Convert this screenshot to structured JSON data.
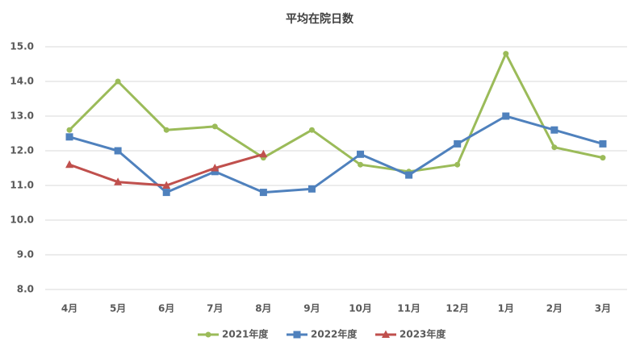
{
  "chart_data": {
    "type": "line",
    "title": "平均在院日数",
    "categories": [
      "4月",
      "5月",
      "6月",
      "7月",
      "8月",
      "9月",
      "10月",
      "11月",
      "12月",
      "1月",
      "2月",
      "3月"
    ],
    "series": [
      {
        "name": "2021年度",
        "color": "#9bbb59",
        "marker": "circle",
        "values": [
          12.6,
          14.0,
          12.6,
          12.7,
          11.8,
          12.6,
          11.6,
          11.4,
          11.6,
          14.8,
          12.1,
          11.8
        ]
      },
      {
        "name": "2022年度",
        "color": "#4f81bd",
        "marker": "square",
        "values": [
          12.4,
          12.0,
          10.8,
          11.4,
          10.8,
          10.9,
          11.9,
          11.3,
          12.2,
          13.0,
          12.6,
          12.2
        ]
      },
      {
        "name": "2023年度",
        "color": "#c0504d",
        "marker": "triangle",
        "values": [
          11.6,
          11.1,
          11.0,
          11.5,
          11.9,
          null,
          null,
          null,
          null,
          null,
          null,
          null
        ]
      }
    ],
    "ylim": [
      8,
      15
    ],
    "yticks": [
      {
        "value": 8,
        "label": "8.0"
      },
      {
        "value": 9,
        "label": "9.0"
      },
      {
        "value": 10,
        "label": "10.0"
      },
      {
        "value": 11,
        "label": "11.0"
      },
      {
        "value": 12,
        "label": "12.0"
      },
      {
        "value": 13,
        "label": "13.0"
      },
      {
        "value": 14,
        "label": "14.0"
      },
      {
        "value": 15,
        "label": "15.0"
      }
    ],
    "grid": true,
    "legend": "bottom"
  }
}
